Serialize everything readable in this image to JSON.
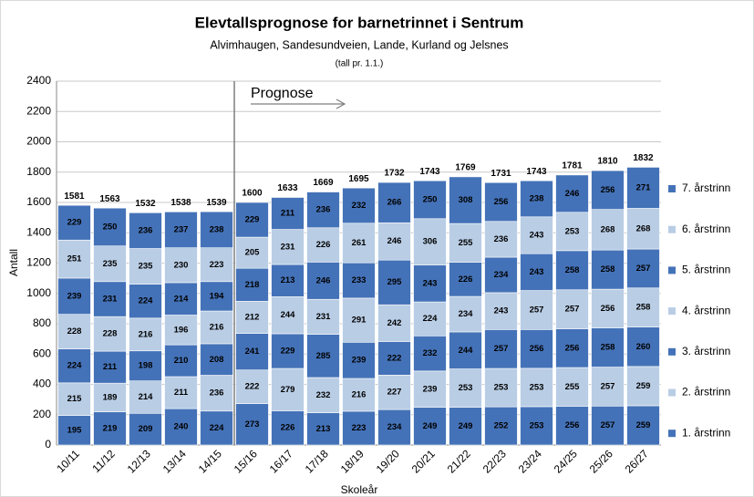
{
  "chart_data": {
    "type": "stacked_bar",
    "title": "Elevtallsprognose for barnetrinnet i Sentrum",
    "subtitle": "Alvimhaugen, Sandesundveien, Lande, Kurland og Jelsnes",
    "note": "(tall pr. 1.1.)",
    "annotation": "Prognose",
    "xlabel": "Skoleår",
    "ylabel": "Antall",
    "categories": [
      "10/11",
      "11/12",
      "12/13",
      "13/14",
      "14/15",
      "15/16",
      "16/17",
      "17/18",
      "18/19",
      "19/20",
      "20/21",
      "21/22",
      "22/23",
      "23/24",
      "24/25",
      "25/26",
      "26/27"
    ],
    "series": [
      {
        "name": "1. årstrinn",
        "color": "#4472b8",
        "values": [
          195,
          219,
          209,
          240,
          224,
          273,
          226,
          213,
          223,
          234,
          249,
          249,
          252,
          253,
          256,
          257,
          259
        ]
      },
      {
        "name": "2. årstrinn",
        "color": "#b9cde5",
        "values": [
          215,
          189,
          214,
          211,
          236,
          222,
          279,
          232,
          216,
          227,
          239,
          253,
          253,
          253,
          255,
          257,
          259
        ]
      },
      {
        "name": "3. årstrinn",
        "color": "#4472b8",
        "values": [
          224,
          211,
          198,
          210,
          208,
          241,
          229,
          285,
          239,
          222,
          232,
          244,
          257,
          256,
          256,
          258,
          260
        ]
      },
      {
        "name": "4. årstrinn",
        "color": "#b9cde5",
        "values": [
          228,
          228,
          216,
          196,
          216,
          212,
          244,
          231,
          291,
          242,
          224,
          234,
          243,
          257,
          257,
          256,
          258
        ]
      },
      {
        "name": "5. årstrinn",
        "color": "#4472b8",
        "values": [
          239,
          231,
          224,
          214,
          194,
          218,
          213,
          246,
          233,
          295,
          243,
          226,
          234,
          243,
          258,
          258,
          257
        ]
      },
      {
        "name": "6. årstrinn",
        "color": "#b9cde5",
        "values": [
          251,
          235,
          235,
          230,
          223,
          205,
          231,
          226,
          261,
          246,
          306,
          255,
          236,
          243,
          253,
          268,
          268
        ]
      },
      {
        "name": "7. årstrinn",
        "color": "#4472b8",
        "values": [
          229,
          250,
          236,
          237,
          238,
          229,
          211,
          236,
          232,
          266,
          250,
          308,
          256,
          238,
          246,
          256,
          271
        ]
      }
    ],
    "totals": [
      1581,
      1563,
      1532,
      1538,
      1539,
      1600,
      1633,
      1669,
      1695,
      1732,
      1743,
      1769,
      1731,
      1743,
      1781,
      1810,
      1832
    ],
    "ylim": [
      0,
      2400
    ],
    "yticks": [
      0,
      200,
      400,
      600,
      800,
      1000,
      1200,
      1400,
      1600,
      1800,
      2000,
      2200,
      2400
    ],
    "grid": true,
    "legend": "right"
  }
}
